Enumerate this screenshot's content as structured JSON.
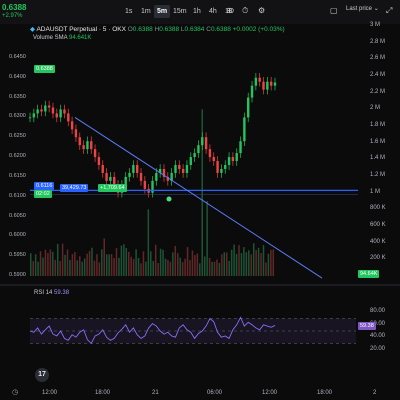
{
  "header": {
    "price": "0.6388",
    "change": "+2.97%",
    "timeframes": [
      {
        "label": "1s",
        "active": false
      },
      {
        "label": "1m",
        "active": false
      },
      {
        "label": "5m",
        "active": true
      },
      {
        "label": "15m",
        "active": false
      },
      {
        "label": "1h",
        "active": false
      },
      {
        "label": "4h",
        "active": false
      },
      {
        "label": "1D",
        "active": false
      }
    ],
    "last_price_label": "Last price",
    "icons": [
      "crosshair-icon",
      "alert-clock-icon",
      "settings-icon",
      "fullscreen-icon",
      "camera-icon"
    ]
  },
  "legend": {
    "title": "ADAUSDT Perpetual · 5 · OKX",
    "o_label": "O",
    "o_value": "0.6388",
    "h_label": "H",
    "h_value": "0.6388",
    "l_label": "L",
    "l_value": "0.6384",
    "c_label": "C",
    "c_value": "0.6388",
    "change": "+0.0002 (+0.03%)"
  },
  "volume": {
    "label": "Volume SMA",
    "value": "94.641K",
    "last_tag": "94.64K"
  },
  "price_axis": {
    "labels": [
      "0.6450",
      "0.6400",
      "0.6350",
      "0.6300",
      "0.6250",
      "0.6200",
      "0.6150",
      "0.6100",
      "0.6050",
      "0.6000",
      "0.5950",
      "0.5900"
    ],
    "current_tag": "0.6388",
    "line_tag": "0.6116",
    "line_tag2": "02:02"
  },
  "volume_axis": {
    "labels": [
      "3 M",
      "2.8 M",
      "2.6 M",
      "2.4 M",
      "2.2 M",
      "2 M",
      "1.8 M",
      "1.6 M",
      "1.4 M",
      "1.2 M",
      "1 M",
      "800 K",
      "600 K",
      "400 K",
      "200 K",
      "0"
    ]
  },
  "measure": {
    "value1": "39,429.73",
    "value2": "+1,709.64"
  },
  "rsi": {
    "label": "RSI",
    "period": "14",
    "value": "59.38",
    "tag": "59.38",
    "levels": [
      "80.00",
      "60.00",
      "40.00",
      "20.00"
    ]
  },
  "time_axis": {
    "labels": [
      "12:00",
      "18:00",
      "21",
      "06:00",
      "12:00",
      "18:00",
      "2"
    ]
  },
  "chart_data": {
    "type": "candlestick",
    "symbol": "ADAUSDT Perpetual",
    "interval": "5",
    "exchange": "OKX",
    "price_range": [
      0.5885,
      0.6475
    ],
    "volume_range": [
      0,
      3000000
    ],
    "rsi_range": [
      0,
      100
    ],
    "close_series": [
      0.63,
      0.631,
      0.632,
      0.6315,
      0.633,
      0.6325,
      0.631,
      0.63,
      0.632,
      0.631,
      0.629,
      0.627,
      0.625,
      0.623,
      0.622,
      0.624,
      0.622,
      0.62,
      0.618,
      0.616,
      0.614,
      0.615,
      0.613,
      0.611,
      0.613,
      0.615,
      0.616,
      0.618,
      0.616,
      0.614,
      0.612,
      0.611,
      0.614,
      0.616,
      0.617,
      0.615,
      0.614,
      0.616,
      0.618,
      0.617,
      0.616,
      0.618,
      0.62,
      0.621,
      0.623,
      0.625,
      0.622,
      0.62,
      0.619,
      0.616,
      0.617,
      0.618,
      0.62,
      0.619,
      0.621,
      0.624,
      0.63,
      0.635,
      0.638,
      0.64,
      0.639,
      0.637,
      0.639,
      0.638,
      0.6388
    ],
    "rsi_series": [
      50,
      48,
      55,
      45,
      52,
      58,
      45,
      42,
      50,
      38,
      35,
      44,
      40,
      48,
      52,
      36,
      30,
      42,
      45,
      52,
      40,
      35,
      38,
      47,
      53,
      60,
      48,
      55,
      44,
      38,
      42,
      55,
      62,
      58,
      50,
      45,
      48,
      42,
      40,
      55,
      60,
      52,
      48,
      38,
      46,
      50,
      58,
      70,
      65,
      48,
      40,
      42,
      38,
      52,
      60,
      72,
      58,
      64,
      60,
      55,
      52,
      60,
      58,
      56,
      59
    ],
    "trendline_1": {
      "from_price": 0.63,
      "to_price": 0.5895
    },
    "horizontal_level": 0.6116
  }
}
